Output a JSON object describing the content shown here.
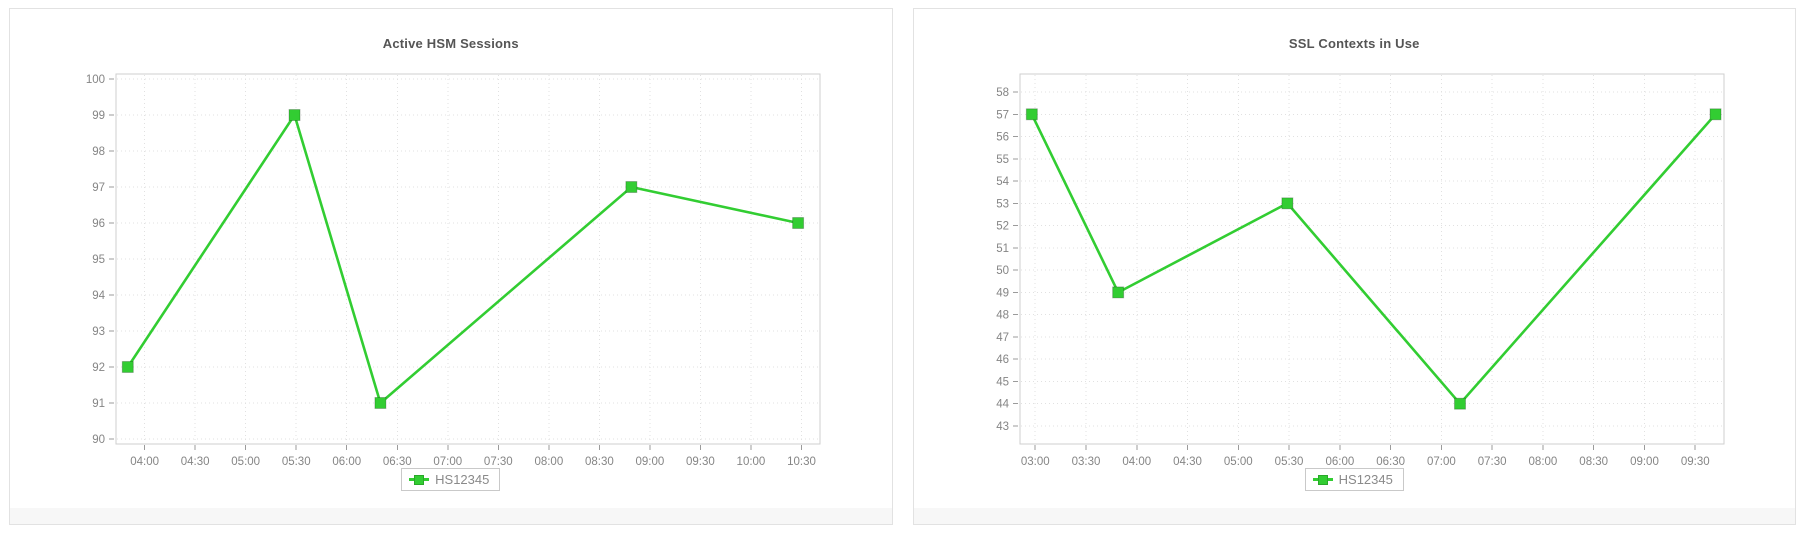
{
  "accent_color": "#32cd32",
  "legend_label": "HS12345",
  "chart_data": [
    {
      "type": "line",
      "title": "Active HSM Sessions",
      "xlabel": "",
      "ylabel": "",
      "x_ticks": [
        "04:00",
        "04:30",
        "05:00",
        "05:30",
        "06:00",
        "06:30",
        "07:00",
        "07:30",
        "08:00",
        "08:30",
        "09:00",
        "09:30",
        "10:00",
        "10:30"
      ],
      "xlim": [
        "03:43",
        "10:41"
      ],
      "y_ticks": [
        90,
        91,
        92,
        93,
        94,
        95,
        96,
        97,
        98,
        99,
        100
      ],
      "ylim": [
        89.86,
        100.14
      ],
      "grid": true,
      "legend_position": "bottom",
      "series": [
        {
          "name": "HS12345",
          "color": "#32cd32",
          "marker": "square",
          "points": [
            {
              "time": "03:50",
              "value": 92
            },
            {
              "time": "05:29",
              "value": 99
            },
            {
              "time": "06:20",
              "value": 91
            },
            {
              "time": "08:49",
              "value": 97
            },
            {
              "time": "10:28",
              "value": 96
            }
          ]
        }
      ]
    },
    {
      "type": "line",
      "title": "SSL Contexts in Use",
      "xlabel": "",
      "ylabel": "",
      "x_ticks": [
        "03:00",
        "03:30",
        "04:00",
        "04:30",
        "05:00",
        "05:30",
        "06:00",
        "06:30",
        "07:00",
        "07:30",
        "08:00",
        "08:30",
        "09:00",
        "09:30"
      ],
      "xlim": [
        "02:51",
        "09:47"
      ],
      "y_ticks": [
        43,
        44,
        45,
        46,
        47,
        48,
        49,
        50,
        51,
        52,
        53,
        54,
        55,
        56,
        57,
        58
      ],
      "ylim": [
        42.19,
        58.81
      ],
      "grid": true,
      "legend_position": "bottom",
      "series": [
        {
          "name": "HS12345",
          "color": "#32cd32",
          "marker": "square",
          "points": [
            {
              "time": "02:58",
              "value": 57
            },
            {
              "time": "03:49",
              "value": 49
            },
            {
              "time": "05:29",
              "value": 53
            },
            {
              "time": "07:11",
              "value": 44
            },
            {
              "time": "09:42",
              "value": 57
            }
          ]
        }
      ]
    }
  ]
}
